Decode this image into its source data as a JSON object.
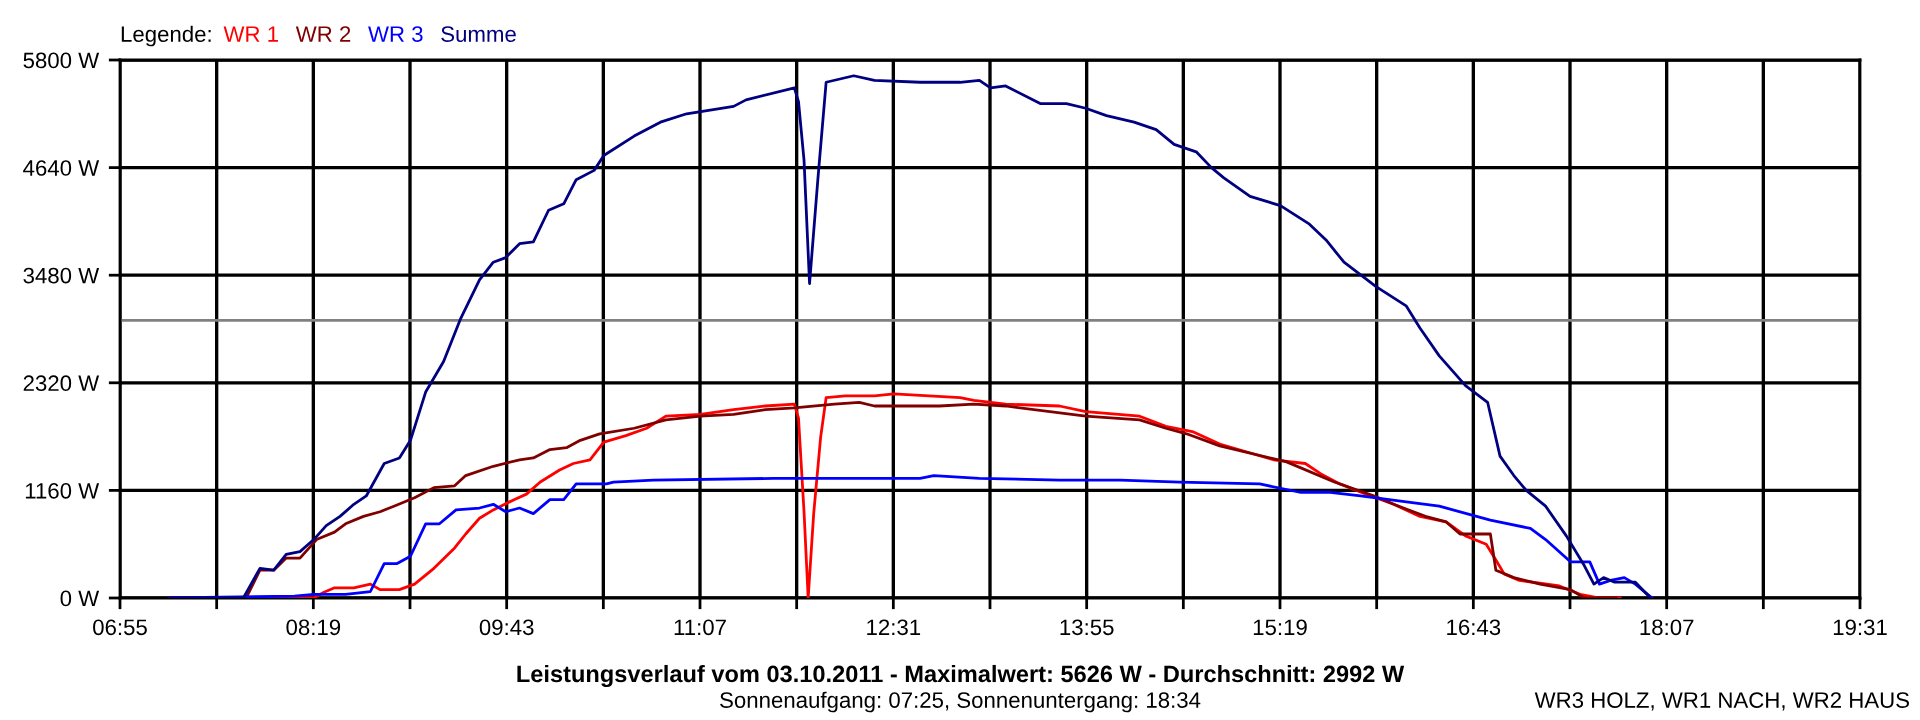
{
  "chart_data": {
    "type": "line",
    "title": "Leistungsverlauf vom 03.10.2011 - Maximalwert: 5626 W - Durchschnitt: 2992 W",
    "subtitle": "Sonnenaufgang: 07:25, Sonnenuntergang: 18:34",
    "legend_title": "Legende:",
    "annotations": [
      "WR3 HOLZ, WR1 NACH, WR2 HAUS"
    ],
    "series": [
      {
        "name": "WR 1",
        "color": "#ff0000",
        "x": [
          7.28,
          8.32,
          8.39,
          8.47,
          8.61,
          8.73,
          8.8,
          8.94,
          9.05,
          9.19,
          9.34,
          9.42,
          9.52,
          9.62,
          9.77,
          9.86,
          9.96,
          10.1,
          10.2,
          10.32,
          10.42,
          10.58,
          10.73,
          10.87,
          11.12,
          11.36,
          11.59,
          11.8,
          11.83,
          11.87,
          11.9,
          11.94,
          11.99,
          12.03,
          12.17,
          12.38,
          12.52,
          13.0,
          13.1,
          13.33,
          13.72,
          13.91,
          14.3,
          14.49,
          14.69,
          14.88,
          15.27,
          15.5,
          15.61,
          15.75,
          15.94,
          16.14,
          16.33,
          16.52,
          16.66,
          16.81,
          16.88,
          16.94,
          17.05,
          17.34,
          17.49,
          17.63,
          17.78
        ],
        "values": [
          0,
          0,
          60,
          110,
          110,
          150,
          90,
          90,
          150,
          320,
          540,
          690,
          860,
          950,
          1060,
          1120,
          1250,
          1380,
          1450,
          1490,
          1680,
          1750,
          1830,
          1960,
          1980,
          2030,
          2070,
          2090,
          1940,
          930,
          0,
          910,
          1730,
          2160,
          2180,
          2180,
          2200,
          2160,
          2130,
          2090,
          2070,
          2010,
          1960,
          1850,
          1790,
          1660,
          1490,
          1450,
          1340,
          1230,
          1120,
          1010,
          880,
          820,
          670,
          580,
          410,
          260,
          190,
          130,
          40,
          0,
          0
        ]
      },
      {
        "name": "WR 2",
        "color": "#800000",
        "x": [
          7.28,
          7.83,
          7.93,
          8.03,
          8.12,
          8.22,
          8.34,
          8.47,
          8.55,
          8.68,
          8.8,
          8.9,
          9.05,
          9.19,
          9.34,
          9.42,
          9.62,
          9.81,
          9.91,
          10.03,
          10.15,
          10.25,
          10.39,
          10.64,
          10.87,
          11.12,
          11.36,
          11.59,
          11.8,
          12.09,
          12.27,
          12.38,
          12.85,
          13.1,
          13.33,
          13.91,
          14.3,
          14.49,
          14.64,
          14.88,
          15.36,
          15.71,
          16.0,
          16.14,
          16.37,
          16.52,
          16.62,
          16.84,
          16.88,
          17.01,
          17.2,
          17.42,
          17.52,
          17.75
        ],
        "values": [
          0,
          0,
          300,
          300,
          430,
          430,
          630,
          710,
          800,
          880,
          930,
          990,
          1080,
          1190,
          1210,
          1320,
          1420,
          1490,
          1510,
          1600,
          1620,
          1700,
          1770,
          1830,
          1920,
          1960,
          1980,
          2030,
          2050,
          2090,
          2110,
          2070,
          2070,
          2090,
          2070,
          1960,
          1920,
          1830,
          1770,
          1640,
          1470,
          1250,
          1100,
          1010,
          880,
          820,
          690,
          690,
          300,
          220,
          150,
          90,
          0,
          0
        ]
      },
      {
        "name": "WR 3",
        "color": "#0000ff",
        "x": [
          7.28,
          8.18,
          8.32,
          8.55,
          8.73,
          8.83,
          8.92,
          9.02,
          9.13,
          9.23,
          9.35,
          9.52,
          9.62,
          9.71,
          9.81,
          9.91,
          10.03,
          10.13,
          10.22,
          10.44,
          10.49,
          10.78,
          11.65,
          12.71,
          12.81,
          13.14,
          13.72,
          14.16,
          14.59,
          15.17,
          15.46,
          15.68,
          15.9,
          16.26,
          16.47,
          16.84,
          17.13,
          17.24,
          17.42,
          17.56,
          17.63,
          17.71,
          17.81,
          17.89,
          18.01
        ],
        "values": [
          0,
          20,
          40,
          40,
          70,
          370,
          370,
          450,
          800,
          800,
          950,
          970,
          1010,
          930,
          970,
          910,
          1060,
          1060,
          1230,
          1230,
          1250,
          1270,
          1290,
          1290,
          1320,
          1290,
          1270,
          1270,
          1250,
          1230,
          1140,
          1140,
          1100,
          1030,
          990,
          840,
          750,
          630,
          390,
          390,
          150,
          190,
          220,
          150,
          0
        ]
      },
      {
        "name": "Summe",
        "color": "#000080",
        "x": [
          7.28,
          7.81,
          7.93,
          8.03,
          8.12,
          8.22,
          8.32,
          8.41,
          8.51,
          8.61,
          8.7,
          8.83,
          8.94,
          9.02,
          9.13,
          9.26,
          9.38,
          9.52,
          9.62,
          9.71,
          9.81,
          9.91,
          10.02,
          10.13,
          10.22,
          10.35,
          10.42,
          10.64,
          10.83,
          11.02,
          11.36,
          11.45,
          11.8,
          11.83,
          11.87,
          11.91,
          11.97,
          12.03,
          12.23,
          12.38,
          12.71,
          13.0,
          13.14,
          13.22,
          13.33,
          13.58,
          13.77,
          13.91,
          14.06,
          14.26,
          14.42,
          14.55,
          14.71,
          14.82,
          14.91,
          15.1,
          15.32,
          15.53,
          15.65,
          15.78,
          16.01,
          16.23,
          16.33,
          16.47,
          16.66,
          16.82,
          16.91,
          17.01,
          17.1,
          17.24,
          17.39,
          17.52,
          17.59,
          17.66,
          17.74,
          17.89,
          18.0
        ],
        "values": [
          0,
          0,
          320,
          300,
          470,
          500,
          630,
          780,
          880,
          1010,
          1100,
          1450,
          1510,
          1700,
          2220,
          2550,
          3000,
          3430,
          3620,
          3670,
          3820,
          3840,
          4180,
          4250,
          4510,
          4610,
          4770,
          4980,
          5130,
          5220,
          5300,
          5370,
          5500,
          5350,
          4720,
          3390,
          4510,
          5560,
          5630,
          5580,
          5560,
          5560,
          5580,
          5500,
          5520,
          5330,
          5330,
          5280,
          5200,
          5130,
          5050,
          4890,
          4810,
          4640,
          4530,
          4330,
          4230,
          4030,
          3860,
          3620,
          3360,
          3150,
          2910,
          2610,
          2290,
          2110,
          1530,
          1320,
          1160,
          990,
          670,
          350,
          150,
          220,
          170,
          170,
          0
        ]
      }
    ],
    "xlim": [
      6.9167,
      19.5167
    ],
    "xticks": [
      {
        "value": 6.9167,
        "label": "06:55"
      },
      {
        "value": 7.6167,
        "label": null
      },
      {
        "value": 8.3167,
        "label": "08:19"
      },
      {
        "value": 9.0167,
        "label": null
      },
      {
        "value": 9.7167,
        "label": "09:43"
      },
      {
        "value": 10.4167,
        "label": null
      },
      {
        "value": 11.1167,
        "label": "11:07"
      },
      {
        "value": 11.8167,
        "label": null
      },
      {
        "value": 12.5167,
        "label": "12:31"
      },
      {
        "value": 13.2167,
        "label": null
      },
      {
        "value": 13.9167,
        "label": "13:55"
      },
      {
        "value": 14.6167,
        "label": null
      },
      {
        "value": 15.3167,
        "label": "15:19"
      },
      {
        "value": 16.0167,
        "label": null
      },
      {
        "value": 16.7167,
        "label": "16:43"
      },
      {
        "value": 17.4167,
        "label": null
      },
      {
        "value": 18.1167,
        "label": "18:07"
      },
      {
        "value": 18.8167,
        "label": null
      },
      {
        "value": 19.5167,
        "label": "19:31"
      }
    ],
    "ylim": [
      0,
      5800
    ],
    "yticks": [
      {
        "value": 0,
        "label": "0 W"
      },
      {
        "value": 1160,
        "label": "1160 W"
      },
      {
        "value": 2320,
        "label": "2320 W"
      },
      {
        "value": 3480,
        "label": "3480 W"
      },
      {
        "value": 4640,
        "label": "4640 W"
      },
      {
        "value": 5800,
        "label": "5800 W"
      }
    ],
    "ref_lines": [
      {
        "axis": "y",
        "value": 2992,
        "color": "#808080"
      }
    ],
    "grid": true,
    "legend": "top left",
    "marker": "none",
    "line_style": "solid"
  }
}
